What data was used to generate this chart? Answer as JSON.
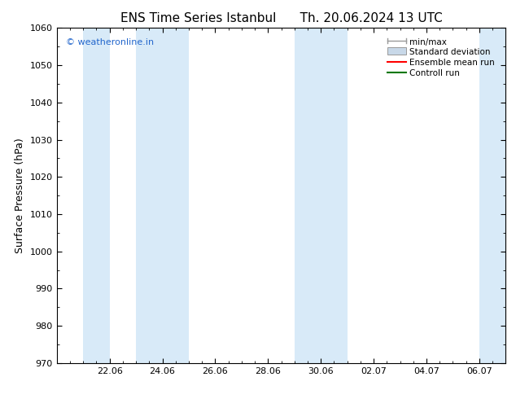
{
  "title": "ENS Time Series Istanbul      Th. 20.06.2024 13 UTC",
  "ylabel": "Surface Pressure (hPa)",
  "ylim": [
    970,
    1060
  ],
  "yticks": [
    970,
    980,
    990,
    1000,
    1010,
    1020,
    1030,
    1040,
    1050,
    1060
  ],
  "xtick_labels": [
    "22.06",
    "24.06",
    "26.06",
    "28.06",
    "30.06",
    "02.07",
    "04.07",
    "06.07"
  ],
  "xtick_positions": [
    2,
    4,
    6,
    8,
    10,
    12,
    14,
    16
  ],
  "xlim": [
    0,
    17
  ],
  "shaded_bands": [
    {
      "x_start": 1.0,
      "x_end": 2.0
    },
    {
      "x_start": 3.0,
      "x_end": 5.0
    },
    {
      "x_start": 9.0,
      "x_end": 11.0
    },
    {
      "x_start": 16.0,
      "x_end": 17.0
    }
  ],
  "shade_color": "#d8eaf8",
  "background_color": "#ffffff",
  "watermark_text": "© weatheronline.in",
  "watermark_color": "#2266cc",
  "title_fontsize": 11,
  "axis_fontsize": 9,
  "tick_fontsize": 8,
  "legend_fontsize": 7.5,
  "minmax_color": "#999999",
  "std_facecolor": "#c8d8e8",
  "std_edgecolor": "#999999",
  "ens_color": "#ff0000",
  "ctrl_color": "#007700"
}
